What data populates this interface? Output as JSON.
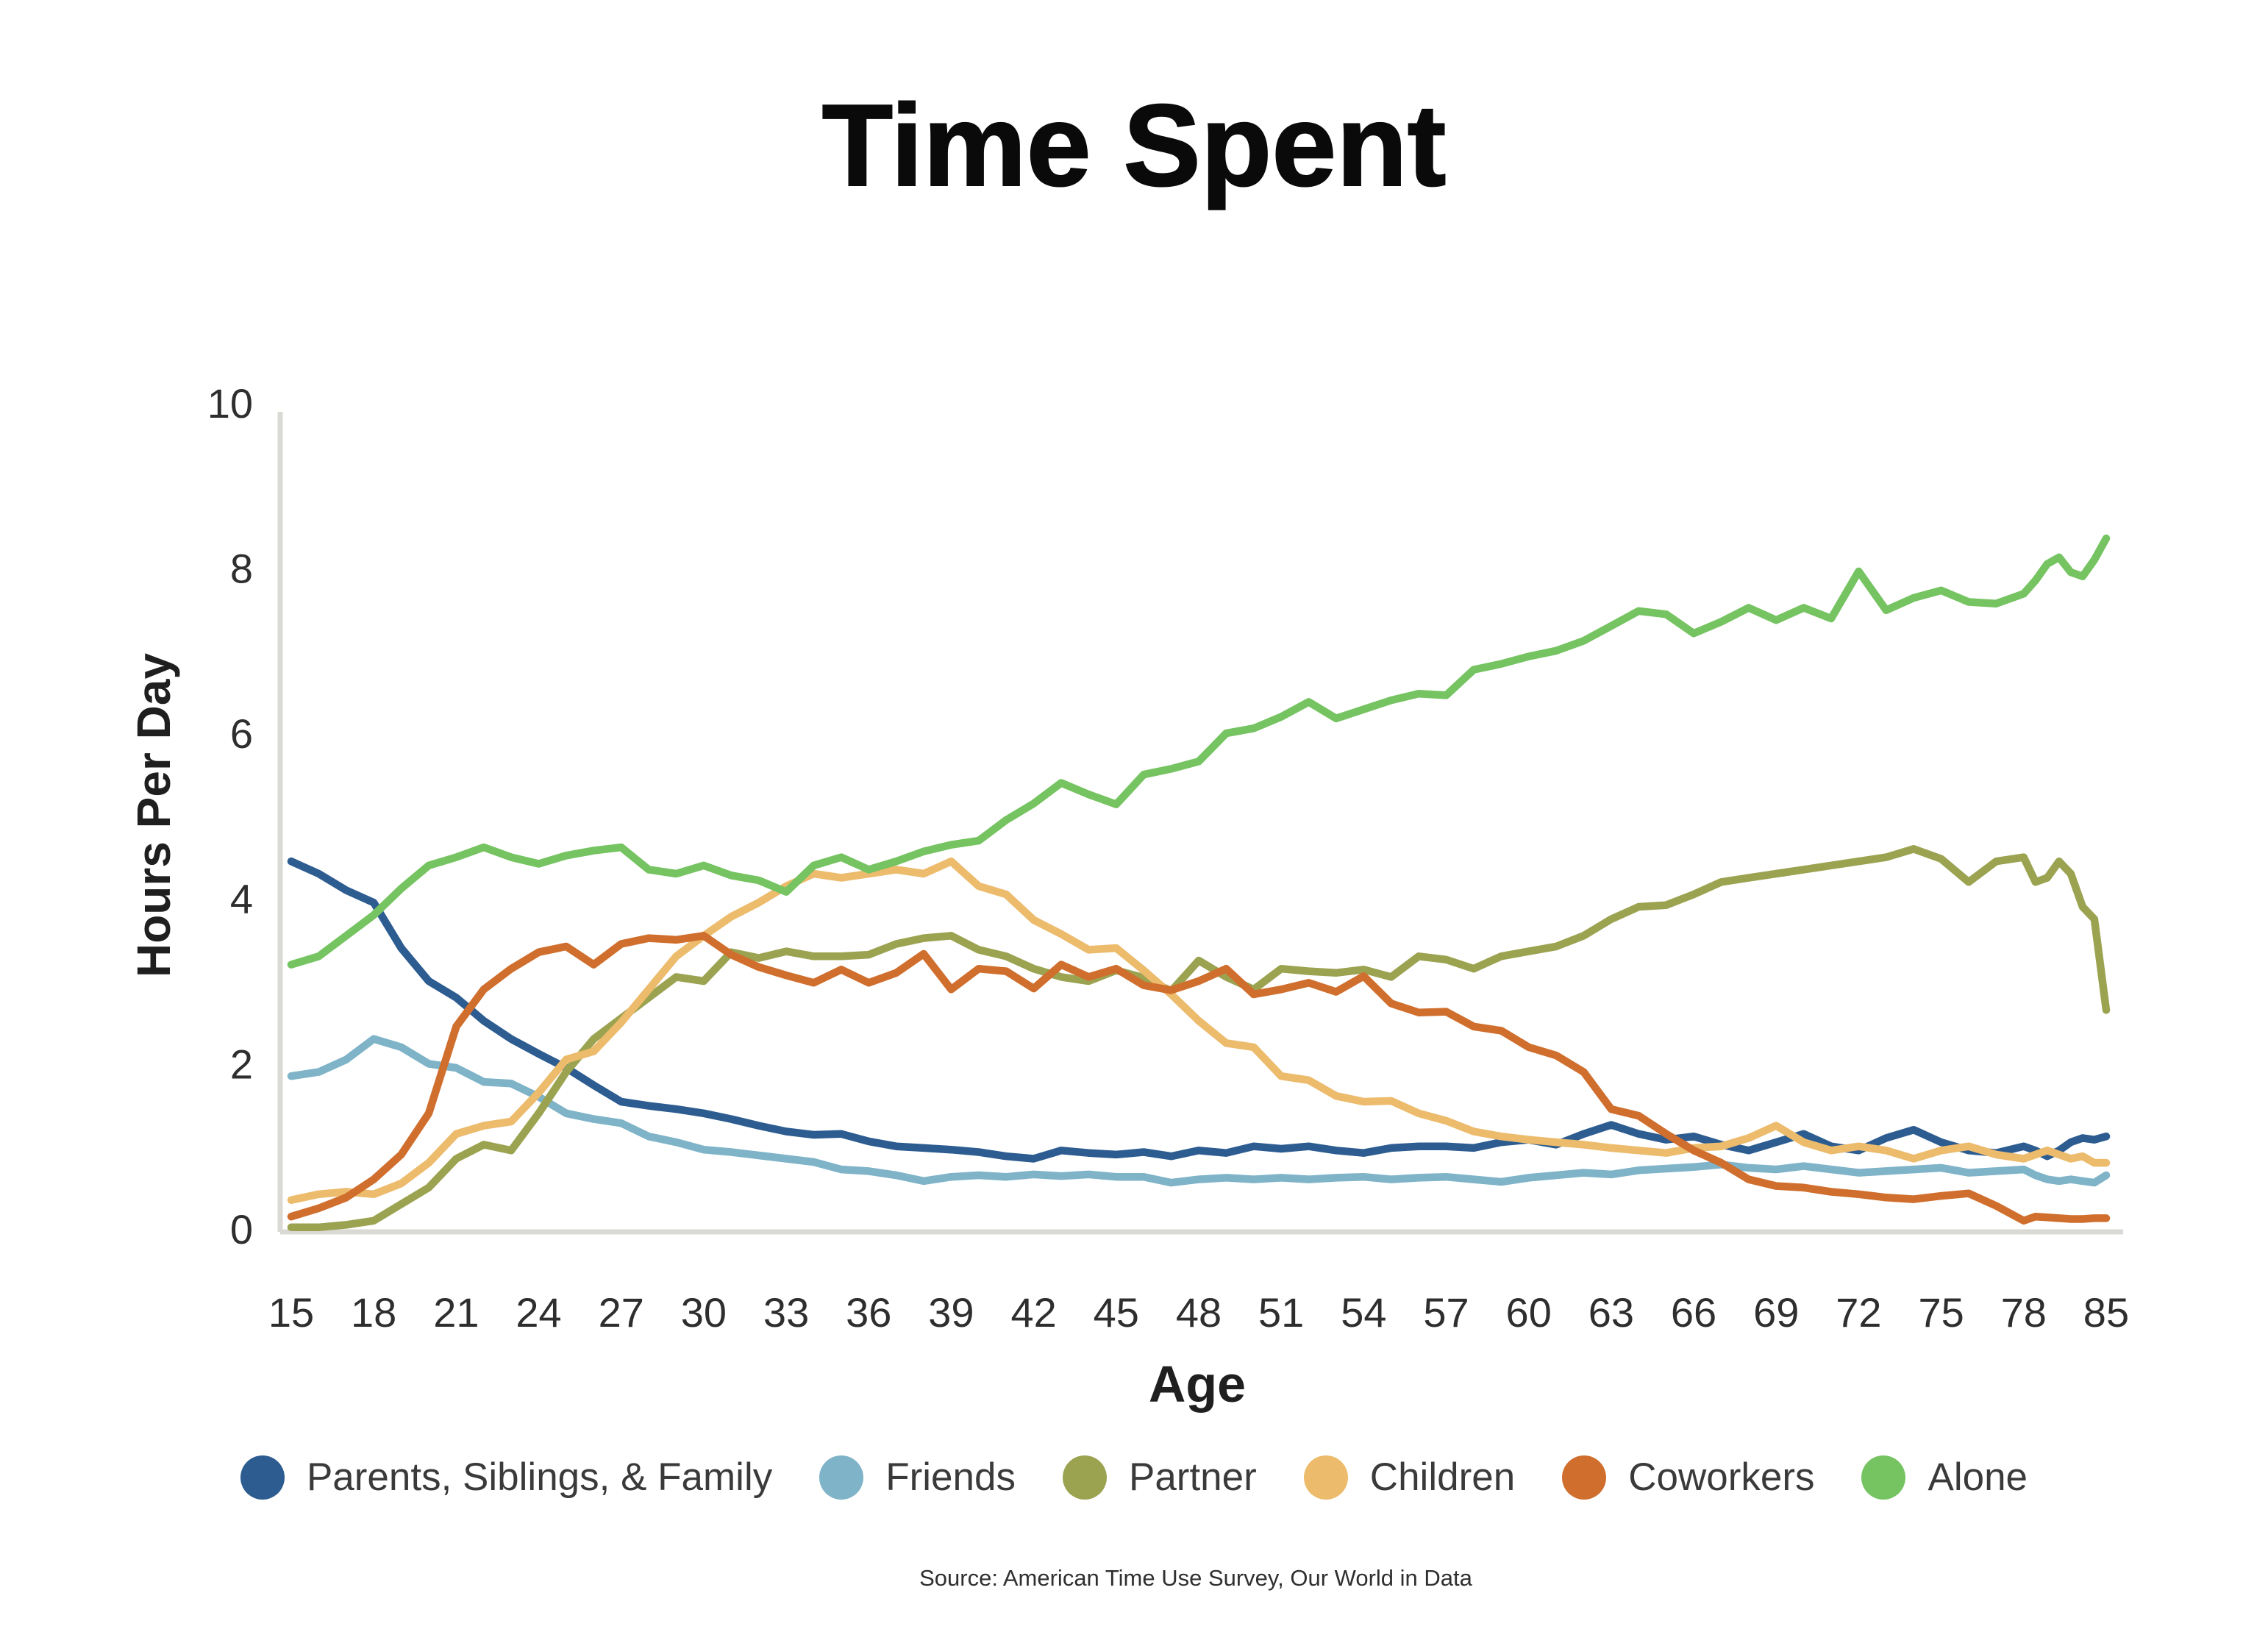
{
  "source": "Source: American Time Use Survey, Our World in Data",
  "colors": {
    "axis_line": "#DAD9D3",
    "title_text": "#0A0A0A",
    "tick_text": "#2E2E2E",
    "axis_title_text": "#1F1F1F",
    "legend_text": "#3A3A3A",
    "source_text": "#2F2F2F",
    "background": "#FFFFFF"
  },
  "chart_data": {
    "type": "line",
    "title": "Time Spent",
    "xlabel": "Age",
    "ylabel": "Hours Per Day",
    "ylim": [
      0,
      10
    ],
    "y_ticks": [
      0,
      2,
      4,
      6,
      8,
      10
    ],
    "x_tick_labels": [
      "15",
      "18",
      "21",
      "24",
      "27",
      "30",
      "33",
      "36",
      "39",
      "42",
      "45",
      "48",
      "51",
      "54",
      "57",
      "60",
      "63",
      "66",
      "69",
      "72",
      "75",
      "78",
      "85"
    ],
    "grid": false,
    "legend_position": "bottom",
    "x": [
      15,
      16,
      17,
      18,
      19,
      20,
      21,
      22,
      23,
      24,
      25,
      26,
      27,
      28,
      29,
      30,
      31,
      32,
      33,
      34,
      35,
      36,
      37,
      38,
      39,
      40,
      41,
      42,
      43,
      44,
      45,
      46,
      47,
      48,
      49,
      50,
      51,
      52,
      53,
      54,
      55,
      56,
      57,
      58,
      59,
      60,
      61,
      62,
      63,
      64,
      65,
      66,
      67,
      68,
      69,
      70,
      71,
      72,
      73,
      74,
      75,
      76,
      77,
      78,
      79,
      80,
      81,
      82,
      83,
      84,
      85
    ],
    "series": [
      {
        "name": "Parents, Siblings, & Family",
        "color": "#2D5C90",
        "values": [
          4.45,
          4.3,
          4.1,
          3.95,
          3.4,
          3.0,
          2.8,
          2.52,
          2.3,
          2.12,
          1.95,
          1.74,
          1.54,
          1.49,
          1.45,
          1.4,
          1.33,
          1.25,
          1.18,
          1.14,
          1.15,
          1.06,
          1.0,
          0.98,
          0.96,
          0.93,
          0.88,
          0.85,
          0.95,
          0.92,
          0.9,
          0.93,
          0.88,
          0.95,
          0.92,
          1.0,
          0.97,
          1.0,
          0.95,
          0.92,
          0.98,
          1.0,
          1.0,
          0.98,
          1.05,
          1.08,
          1.02,
          1.15,
          1.26,
          1.15,
          1.08,
          1.12,
          1.02,
          0.95,
          1.05,
          1.15,
          1.0,
          0.95,
          1.1,
          1.2,
          1.05,
          0.95,
          0.92,
          1.0,
          0.95,
          0.88,
          0.95,
          1.05,
          1.1,
          1.08,
          1.12
        ]
      },
      {
        "name": "Friends",
        "color": "#7EB3C8",
        "values": [
          1.85,
          1.9,
          2.05,
          2.3,
          2.2,
          2.0,
          1.95,
          1.78,
          1.76,
          1.6,
          1.4,
          1.33,
          1.28,
          1.12,
          1.05,
          0.96,
          0.93,
          0.89,
          0.85,
          0.81,
          0.72,
          0.7,
          0.65,
          0.58,
          0.63,
          0.65,
          0.63,
          0.66,
          0.64,
          0.66,
          0.63,
          0.63,
          0.56,
          0.6,
          0.62,
          0.6,
          0.62,
          0.6,
          0.62,
          0.63,
          0.6,
          0.62,
          0.63,
          0.6,
          0.57,
          0.62,
          0.65,
          0.68,
          0.66,
          0.71,
          0.73,
          0.75,
          0.78,
          0.74,
          0.72,
          0.76,
          0.72,
          0.68,
          0.7,
          0.72,
          0.74,
          0.68,
          0.7,
          0.72,
          0.65,
          0.6,
          0.58,
          0.6,
          0.58,
          0.56,
          0.65
        ]
      },
      {
        "name": "Partner",
        "color": "#9BA351",
        "values": [
          0.02,
          0.02,
          0.05,
          0.1,
          0.3,
          0.5,
          0.85,
          1.02,
          0.95,
          1.4,
          1.9,
          2.3,
          2.55,
          2.8,
          3.05,
          3.0,
          3.35,
          3.28,
          3.36,
          3.3,
          3.3,
          3.32,
          3.45,
          3.52,
          3.55,
          3.38,
          3.3,
          3.15,
          3.05,
          3.0,
          3.13,
          3.04,
          2.88,
          3.25,
          3.05,
          2.9,
          3.15,
          3.12,
          3.1,
          3.14,
          3.05,
          3.3,
          3.26,
          3.15,
          3.3,
          3.36,
          3.42,
          3.55,
          3.75,
          3.9,
          3.92,
          4.05,
          4.2,
          4.25,
          4.3,
          4.35,
          4.4,
          4.45,
          4.5,
          4.6,
          4.48,
          4.2,
          4.45,
          4.5,
          4.2,
          4.25,
          4.45,
          4.3,
          3.9,
          3.75,
          2.65
        ]
      },
      {
        "name": "Children",
        "color": "#ECBB6C",
        "values": [
          0.35,
          0.42,
          0.45,
          0.42,
          0.55,
          0.8,
          1.15,
          1.25,
          1.3,
          1.65,
          2.05,
          2.15,
          2.5,
          2.9,
          3.3,
          3.55,
          3.78,
          3.95,
          4.15,
          4.3,
          4.25,
          4.3,
          4.35,
          4.3,
          4.45,
          4.15,
          4.05,
          3.74,
          3.57,
          3.38,
          3.4,
          3.13,
          2.84,
          2.52,
          2.25,
          2.2,
          1.85,
          1.8,
          1.61,
          1.54,
          1.55,
          1.4,
          1.31,
          1.18,
          1.12,
          1.08,
          1.05,
          1.02,
          0.98,
          0.95,
          0.92,
          0.98,
          1.0,
          1.1,
          1.25,
          1.05,
          0.95,
          1.0,
          0.95,
          0.85,
          0.95,
          1.0,
          0.9,
          0.85,
          0.9,
          0.95,
          0.9,
          0.85,
          0.88,
          0.8,
          0.8
        ]
      },
      {
        "name": "Coworkers",
        "color": "#D06E2D",
        "values": [
          0.15,
          0.25,
          0.38,
          0.6,
          0.9,
          1.4,
          2.45,
          2.9,
          3.15,
          3.35,
          3.42,
          3.2,
          3.45,
          3.52,
          3.5,
          3.55,
          3.32,
          3.17,
          3.07,
          2.98,
          3.14,
          2.98,
          3.1,
          3.33,
          2.9,
          3.15,
          3.12,
          2.91,
          3.2,
          3.05,
          3.15,
          2.95,
          2.89,
          3.0,
          3.15,
          2.84,
          2.9,
          2.98,
          2.87,
          3.06,
          2.73,
          2.62,
          2.63,
          2.45,
          2.4,
          2.2,
          2.1,
          1.9,
          1.45,
          1.37,
          1.15,
          0.95,
          0.8,
          0.6,
          0.52,
          0.5,
          0.45,
          0.42,
          0.38,
          0.36,
          0.4,
          0.43,
          0.28,
          0.1,
          0.15,
          0.14,
          0.13,
          0.12,
          0.12,
          0.13,
          0.13
        ]
      },
      {
        "name": "Alone",
        "color": "#75C361",
        "values": [
          3.2,
          3.3,
          3.55,
          3.8,
          4.12,
          4.4,
          4.5,
          4.62,
          4.5,
          4.42,
          4.52,
          4.58,
          4.62,
          4.35,
          4.3,
          4.4,
          4.28,
          4.22,
          4.08,
          4.4,
          4.5,
          4.35,
          4.45,
          4.57,
          4.65,
          4.7,
          4.95,
          5.15,
          5.4,
          5.26,
          5.14,
          5.5,
          5.57,
          5.66,
          6.0,
          6.06,
          6.2,
          6.38,
          6.18,
          6.29,
          6.4,
          6.48,
          6.46,
          6.77,
          6.84,
          6.93,
          7.0,
          7.12,
          7.3,
          7.48,
          7.44,
          7.21,
          7.35,
          7.52,
          7.37,
          7.52,
          7.39,
          7.96,
          7.49,
          7.64,
          7.73,
          7.59,
          7.57,
          7.69,
          7.85,
          8.05,
          8.13,
          7.95,
          7.9,
          8.1,
          8.36
        ]
      }
    ]
  }
}
